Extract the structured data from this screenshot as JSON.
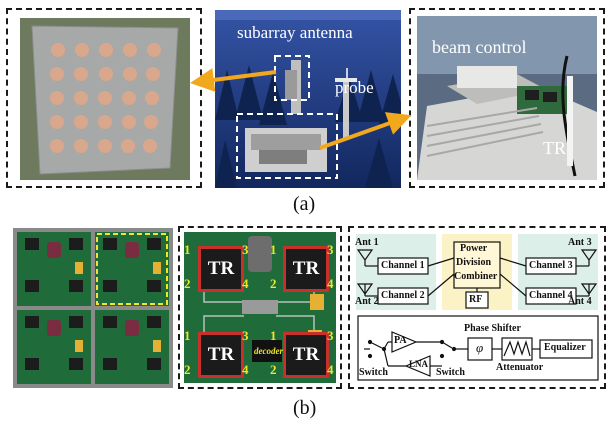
{
  "figure_a": {
    "labels": {
      "subarray": "subarray antenna",
      "probe": "probe",
      "beam": "beam control",
      "tr": "TR"
    },
    "caption": "(a)"
  },
  "figure_b": {
    "chip_label": "TR",
    "corner_numbers": [
      "1",
      "2",
      "3",
      "4"
    ],
    "decoder_label": "decoder",
    "block": {
      "ant1": "Ant 1",
      "ant2": "Ant 2",
      "ant3": "Ant 3",
      "ant4": "Ant 4",
      "ch1": "Channel 1",
      "ch2": "Channel 2",
      "ch3": "Channel 3",
      "ch4": "Channel 4",
      "pdc1": "Power",
      "pdc2": "Division",
      "pdc3": "Combiner",
      "rf": "RF",
      "pa": "PA",
      "lna": "LNA",
      "switch_l": "Switch",
      "switch_r": "Switch",
      "phase": "Phase Shifter",
      "phi": "φ",
      "atten": "Attenuator",
      "eq": "Equalizer"
    },
    "caption": "(b)"
  },
  "colors": {
    "chamber": "#1d3a82",
    "pcb_green": "#1f6b3a",
    "chip_red": "#c7302b",
    "pdc_yellow": "#fbf3c5",
    "panel_cyan": "#dcefe9",
    "arrow_orange": "#f2a81d"
  }
}
